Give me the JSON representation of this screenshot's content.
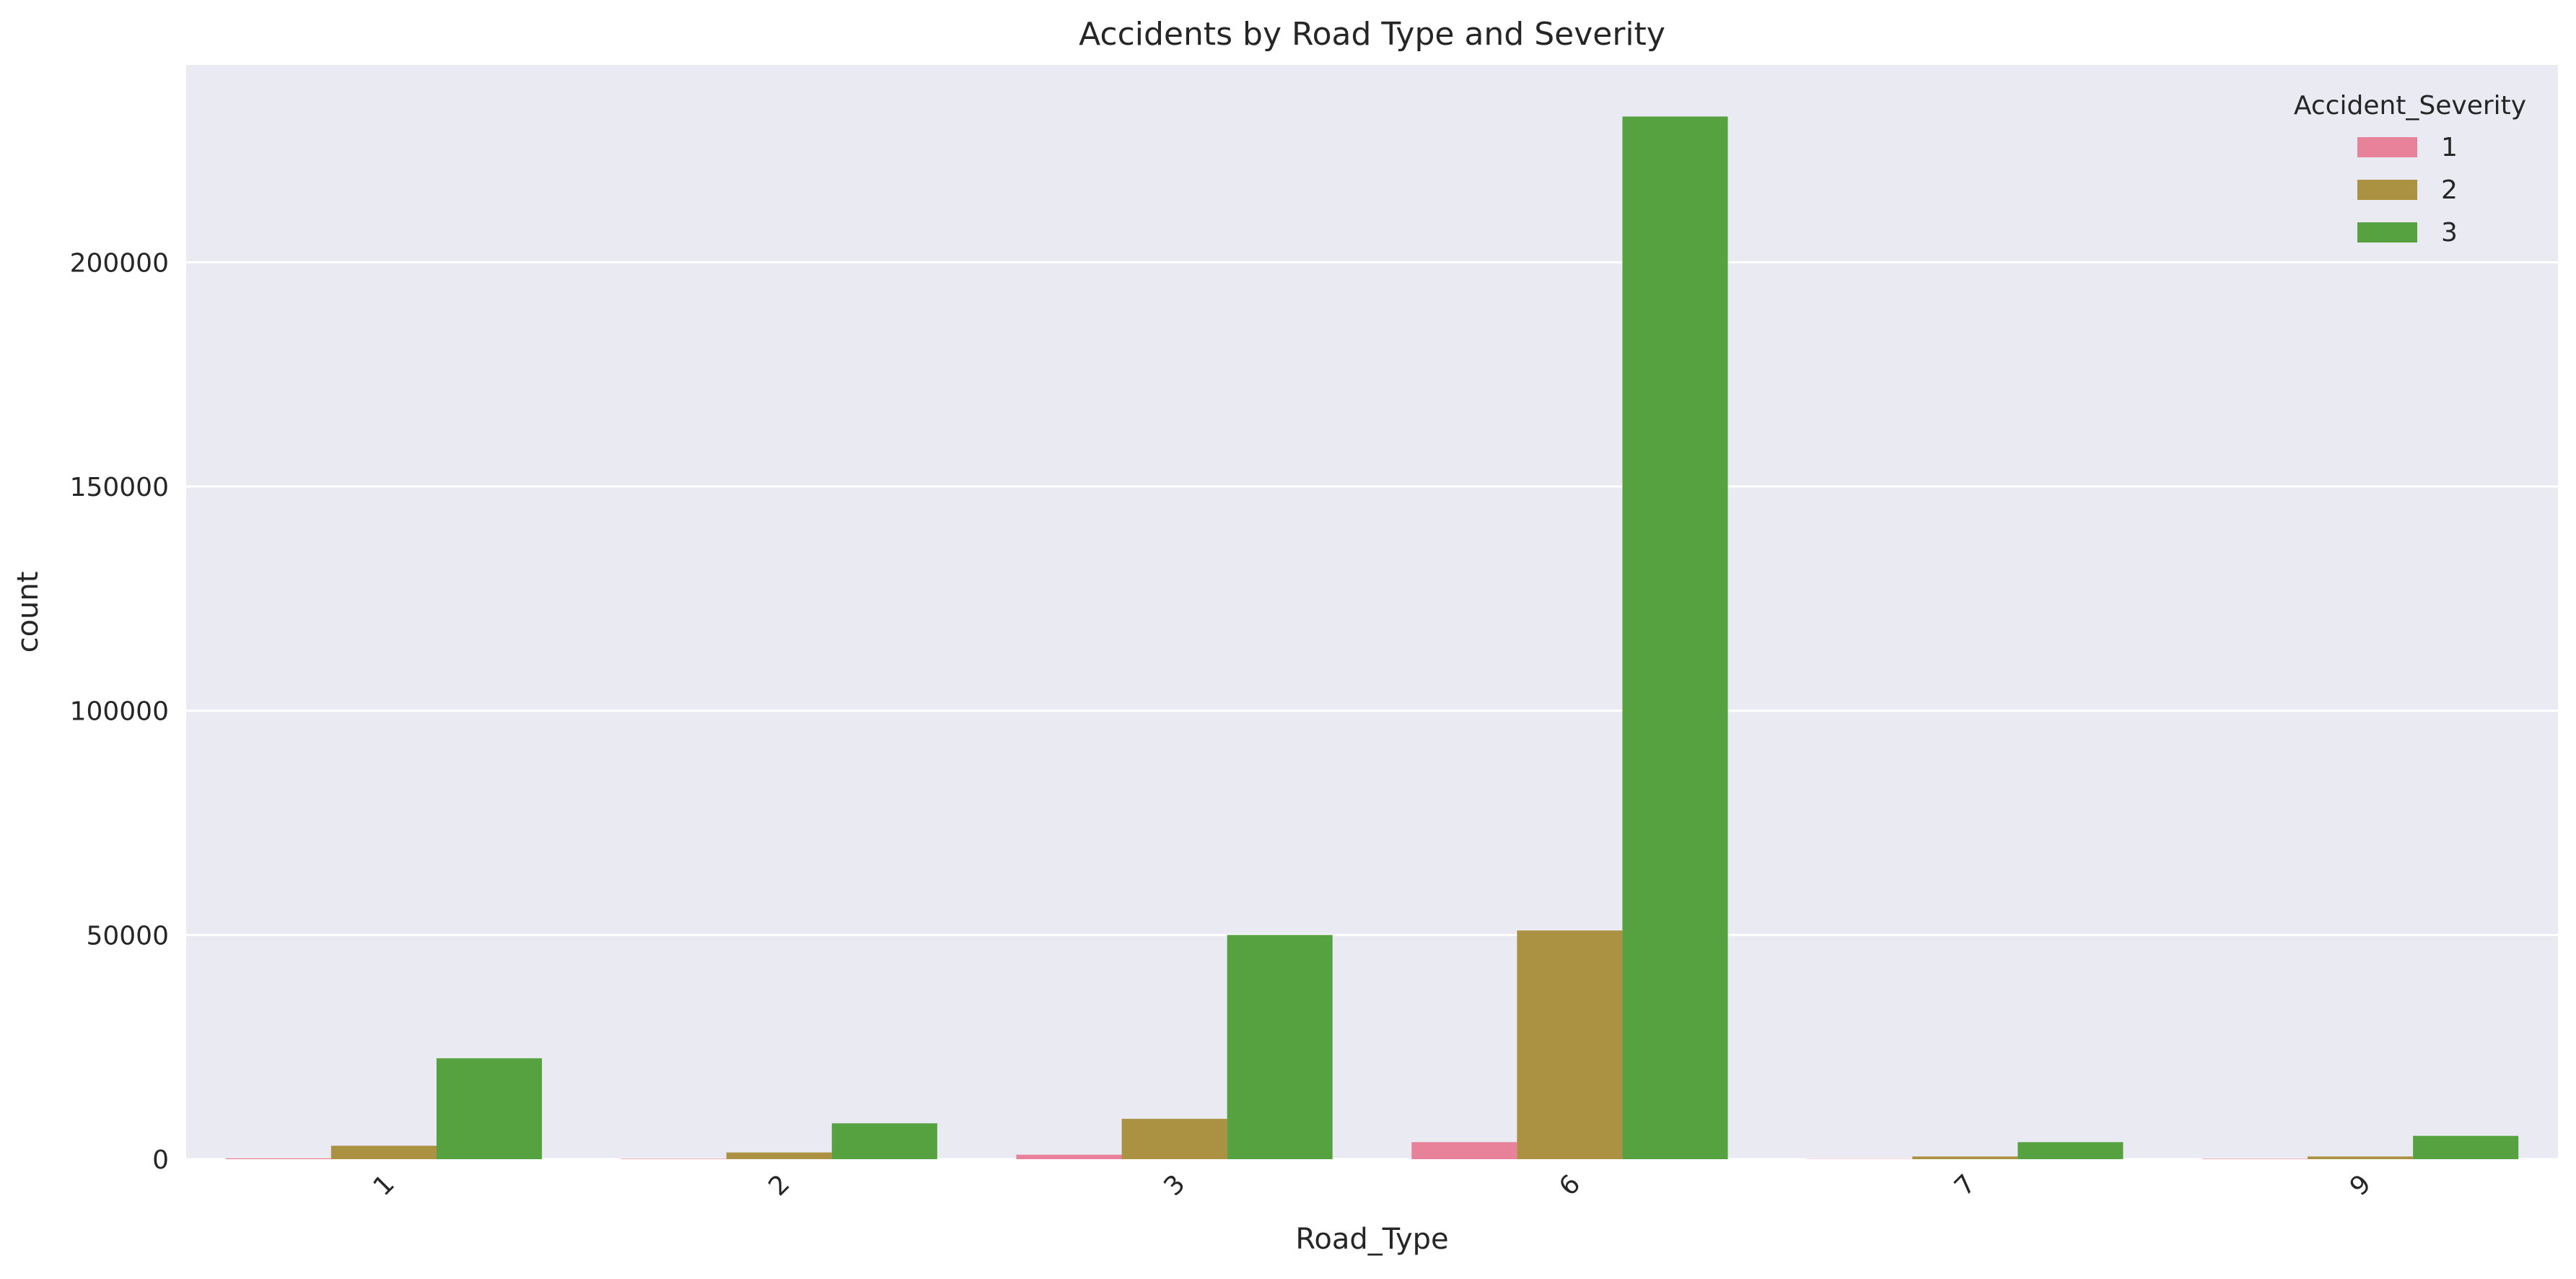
{
  "chart_data": {
    "type": "bar",
    "title": "Accidents by Road Type and Severity",
    "xlabel": "Road_Type",
    "ylabel": "count",
    "categories": [
      "1",
      "2",
      "3",
      "6",
      "7",
      "9"
    ],
    "series": [
      {
        "name": "1",
        "color": "#e8829a",
        "values": [
          200,
          100,
          1000,
          3800,
          50,
          100
        ]
      },
      {
        "name": "2",
        "color": "#ab9142",
        "values": [
          3000,
          1500,
          9000,
          51000,
          600,
          600
        ]
      },
      {
        "name": "3",
        "color": "#56a241",
        "values": [
          22500,
          8000,
          50000,
          232500,
          3800,
          5200
        ]
      }
    ],
    "ylim": [
      0,
      244000
    ],
    "yticks": [
      0,
      50000,
      100000,
      150000,
      200000
    ],
    "ytick_labels": [
      "0",
      "50000",
      "100000",
      "150000",
      "200000"
    ],
    "grid": true,
    "legend": {
      "title": "Accident_Severity",
      "placement": "top-right"
    },
    "colors": {
      "background": "#eaeaf2",
      "grid": "#ffffff",
      "text": "#262626"
    }
  }
}
